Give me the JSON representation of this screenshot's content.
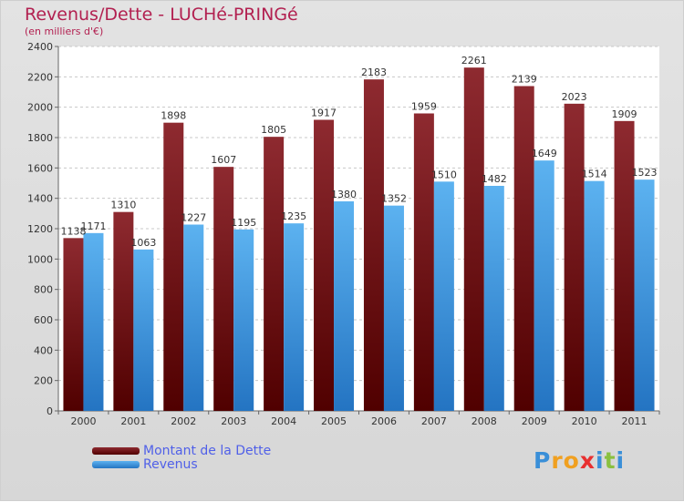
{
  "chart_data": {
    "type": "bar",
    "title": "Revenus/Dette - LUCHé-PRINGé",
    "subtitle": "(en milliers d'€)",
    "xlabel": "",
    "ylabel": "",
    "ylim": [
      0,
      2400
    ],
    "yticks": [
      0,
      200,
      400,
      600,
      800,
      1000,
      1200,
      1400,
      1600,
      1800,
      2000,
      2200,
      2400
    ],
    "grid": true,
    "legend_position": "bottom-left",
    "categories": [
      "2000",
      "2001",
      "2002",
      "2003",
      "2004",
      "2005",
      "2006",
      "2007",
      "2008",
      "2009",
      "2010",
      "2011"
    ],
    "series": [
      {
        "name": "Montant de la Dette",
        "color": "#7a1c22",
        "values": [
          1138,
          1310,
          1898,
          1607,
          1805,
          1917,
          2183,
          1959,
          2261,
          2139,
          2023,
          1909
        ]
      },
      {
        "name": "Revenus",
        "color": "#4aa3e6",
        "values": [
          1171,
          1063,
          1227,
          1195,
          1235,
          1380,
          1352,
          1510,
          1482,
          1649,
          1514,
          1523
        ]
      }
    ]
  },
  "logo": {
    "letters": [
      "P",
      "r",
      "o",
      "x",
      "i",
      "t",
      "i"
    ],
    "colors": [
      "#3a8fd8",
      "#f0a020",
      "#f0a020",
      "#e83030",
      "#3a8fd8",
      "#8ac040",
      "#3a8fd8"
    ]
  }
}
